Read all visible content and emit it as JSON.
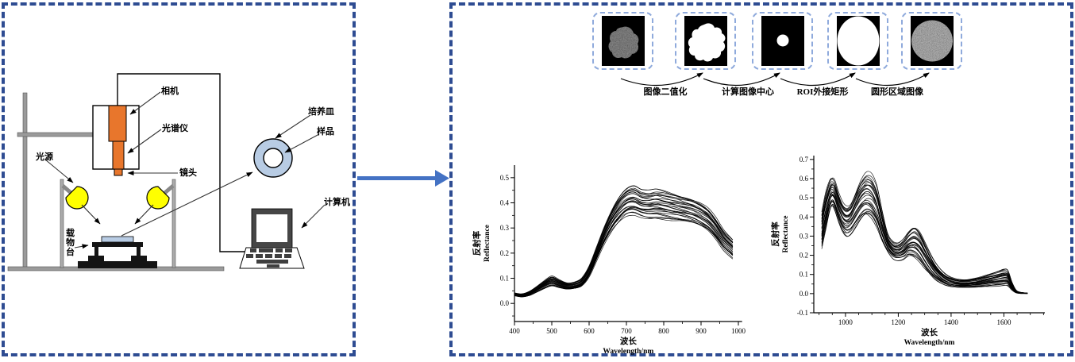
{
  "figure": {
    "kind": "hyperspectral-imaging-figure"
  },
  "colors": {
    "panel_border_blue": "#2e4c92",
    "flow_arrow_blue": "#4472c4",
    "thumb_border_blue": "#8faadc",
    "lamp_yellow": "#ffff00",
    "device_orange": "#e8762c",
    "petri_blue": "#b8cce4"
  },
  "left_panel": {
    "labels": {
      "camera": "相机",
      "spectrometer": "光谱仪",
      "lens": "镜头",
      "light_source": "光源",
      "stage": "载物台",
      "petri_dish": "培养皿",
      "sample": "样品",
      "computer": "计算机"
    }
  },
  "right_panel": {
    "pipeline": {
      "arrow_labels": [
        "图像二值化",
        "计算图像中心",
        "ROI外接矩形",
        "圆形区域图像"
      ]
    }
  },
  "chart_data": [
    {
      "type": "line",
      "title": "",
      "xlabel": "波长",
      "xlabel_sub": "Wavelength/nm",
      "ylabel": "反射率",
      "ylabel_sub": "Reflectance",
      "xlim": [
        400,
        1010
      ],
      "ylim": [
        -0.072,
        0.55
      ],
      "x_ticks": [
        400,
        500,
        600,
        700,
        800,
        900,
        1000
      ],
      "x_tick_labels": [
        "400",
        "500",
        "600",
        "700",
        "800",
        "900",
        "1000"
      ],
      "x_minor_ticks": [
        450,
        550,
        650,
        750,
        850,
        950
      ],
      "y_ticks": [
        0.0,
        0.1,
        0.2,
        0.3,
        0.4,
        0.5
      ],
      "y_tick_labels": [
        "0.0",
        "0.1",
        "0.2",
        "0.3",
        "0.4",
        "0.5"
      ],
      "y_minor_ticks": [
        -0.05,
        0.05,
        0.15,
        0.25,
        0.35,
        0.45
      ],
      "grid": false,
      "legend": false,
      "n_curves": 30,
      "x": [
        400,
        420,
        440,
        460,
        480,
        500,
        520,
        540,
        560,
        580,
        600,
        620,
        640,
        660,
        680,
        700,
        720,
        740,
        760,
        780,
        800,
        820,
        840,
        860,
        880,
        900,
        920,
        940,
        960,
        985
      ],
      "envelope_low": [
        0.03,
        0.026,
        0.032,
        0.046,
        0.06,
        0.07,
        0.062,
        0.056,
        0.058,
        0.068,
        0.105,
        0.17,
        0.235,
        0.285,
        0.32,
        0.345,
        0.352,
        0.344,
        0.34,
        0.342,
        0.338,
        0.332,
        0.327,
        0.321,
        0.314,
        0.301,
        0.284,
        0.254,
        0.214,
        0.18
      ],
      "envelope_high": [
        0.042,
        0.038,
        0.048,
        0.068,
        0.09,
        0.108,
        0.094,
        0.082,
        0.085,
        0.1,
        0.148,
        0.225,
        0.305,
        0.375,
        0.43,
        0.462,
        0.47,
        0.452,
        0.448,
        0.452,
        0.447,
        0.44,
        0.432,
        0.424,
        0.414,
        0.399,
        0.377,
        0.34,
        0.294,
        0.255
      ]
    },
    {
      "type": "line",
      "title": "",
      "xlabel": "波长",
      "xlabel_sub": "Wavelength/nm",
      "ylabel": "反射率",
      "ylabel_sub": "Reflectance",
      "xlim": [
        880,
        1755
      ],
      "ylim": [
        -0.1,
        0.72
      ],
      "x_ticks": [
        1000,
        1200,
        1400,
        1600
      ],
      "x_tick_labels": [
        "1000",
        "1200",
        "1400",
        "1600"
      ],
      "x_minor_ticks": [
        900,
        950,
        1050,
        1100,
        1150,
        1250,
        1300,
        1350,
        1450,
        1500,
        1550,
        1650,
        1700,
        1750
      ],
      "y_ticks": [
        -0.1,
        0.0,
        0.1,
        0.2,
        0.3,
        0.4,
        0.5,
        0.6,
        0.7
      ],
      "y_tick_labels": [
        "-0.1",
        "0.0",
        "0.1",
        "0.2",
        "0.3",
        "0.4",
        "0.5",
        "0.6",
        "0.7"
      ],
      "y_minor_ticks": [
        -0.05,
        0.05,
        0.15,
        0.25,
        0.35,
        0.45,
        0.55,
        0.65
      ],
      "grid": false,
      "legend": false,
      "n_curves": 30,
      "x": [
        910,
        925,
        940,
        950,
        960,
        975,
        990,
        1005,
        1020,
        1040,
        1060,
        1080,
        1100,
        1120,
        1140,
        1160,
        1180,
        1200,
        1220,
        1240,
        1260,
        1280,
        1300,
        1320,
        1340,
        1360,
        1380,
        1400,
        1430,
        1460,
        1490,
        1520,
        1550,
        1580,
        1600,
        1615,
        1630,
        1645,
        1660,
        1690
      ],
      "envelope_low": [
        0.24,
        0.33,
        0.42,
        0.45,
        0.43,
        0.37,
        0.325,
        0.305,
        0.315,
        0.35,
        0.385,
        0.4,
        0.385,
        0.34,
        0.27,
        0.22,
        0.185,
        0.175,
        0.18,
        0.195,
        0.185,
        0.165,
        0.13,
        0.1,
        0.075,
        0.058,
        0.045,
        0.038,
        0.033,
        0.032,
        0.033,
        0.035,
        0.038,
        0.042,
        0.045,
        0.042,
        0.02,
        0.005,
        0.001,
        0.0
      ],
      "envelope_high": [
        0.42,
        0.52,
        0.585,
        0.6,
        0.585,
        0.52,
        0.475,
        0.46,
        0.475,
        0.54,
        0.6,
        0.63,
        0.615,
        0.55,
        0.42,
        0.31,
        0.27,
        0.265,
        0.29,
        0.33,
        0.355,
        0.33,
        0.27,
        0.21,
        0.16,
        0.125,
        0.1,
        0.085,
        0.075,
        0.075,
        0.082,
        0.092,
        0.105,
        0.118,
        0.125,
        0.118,
        0.06,
        0.02,
        0.008,
        0.003
      ]
    }
  ]
}
